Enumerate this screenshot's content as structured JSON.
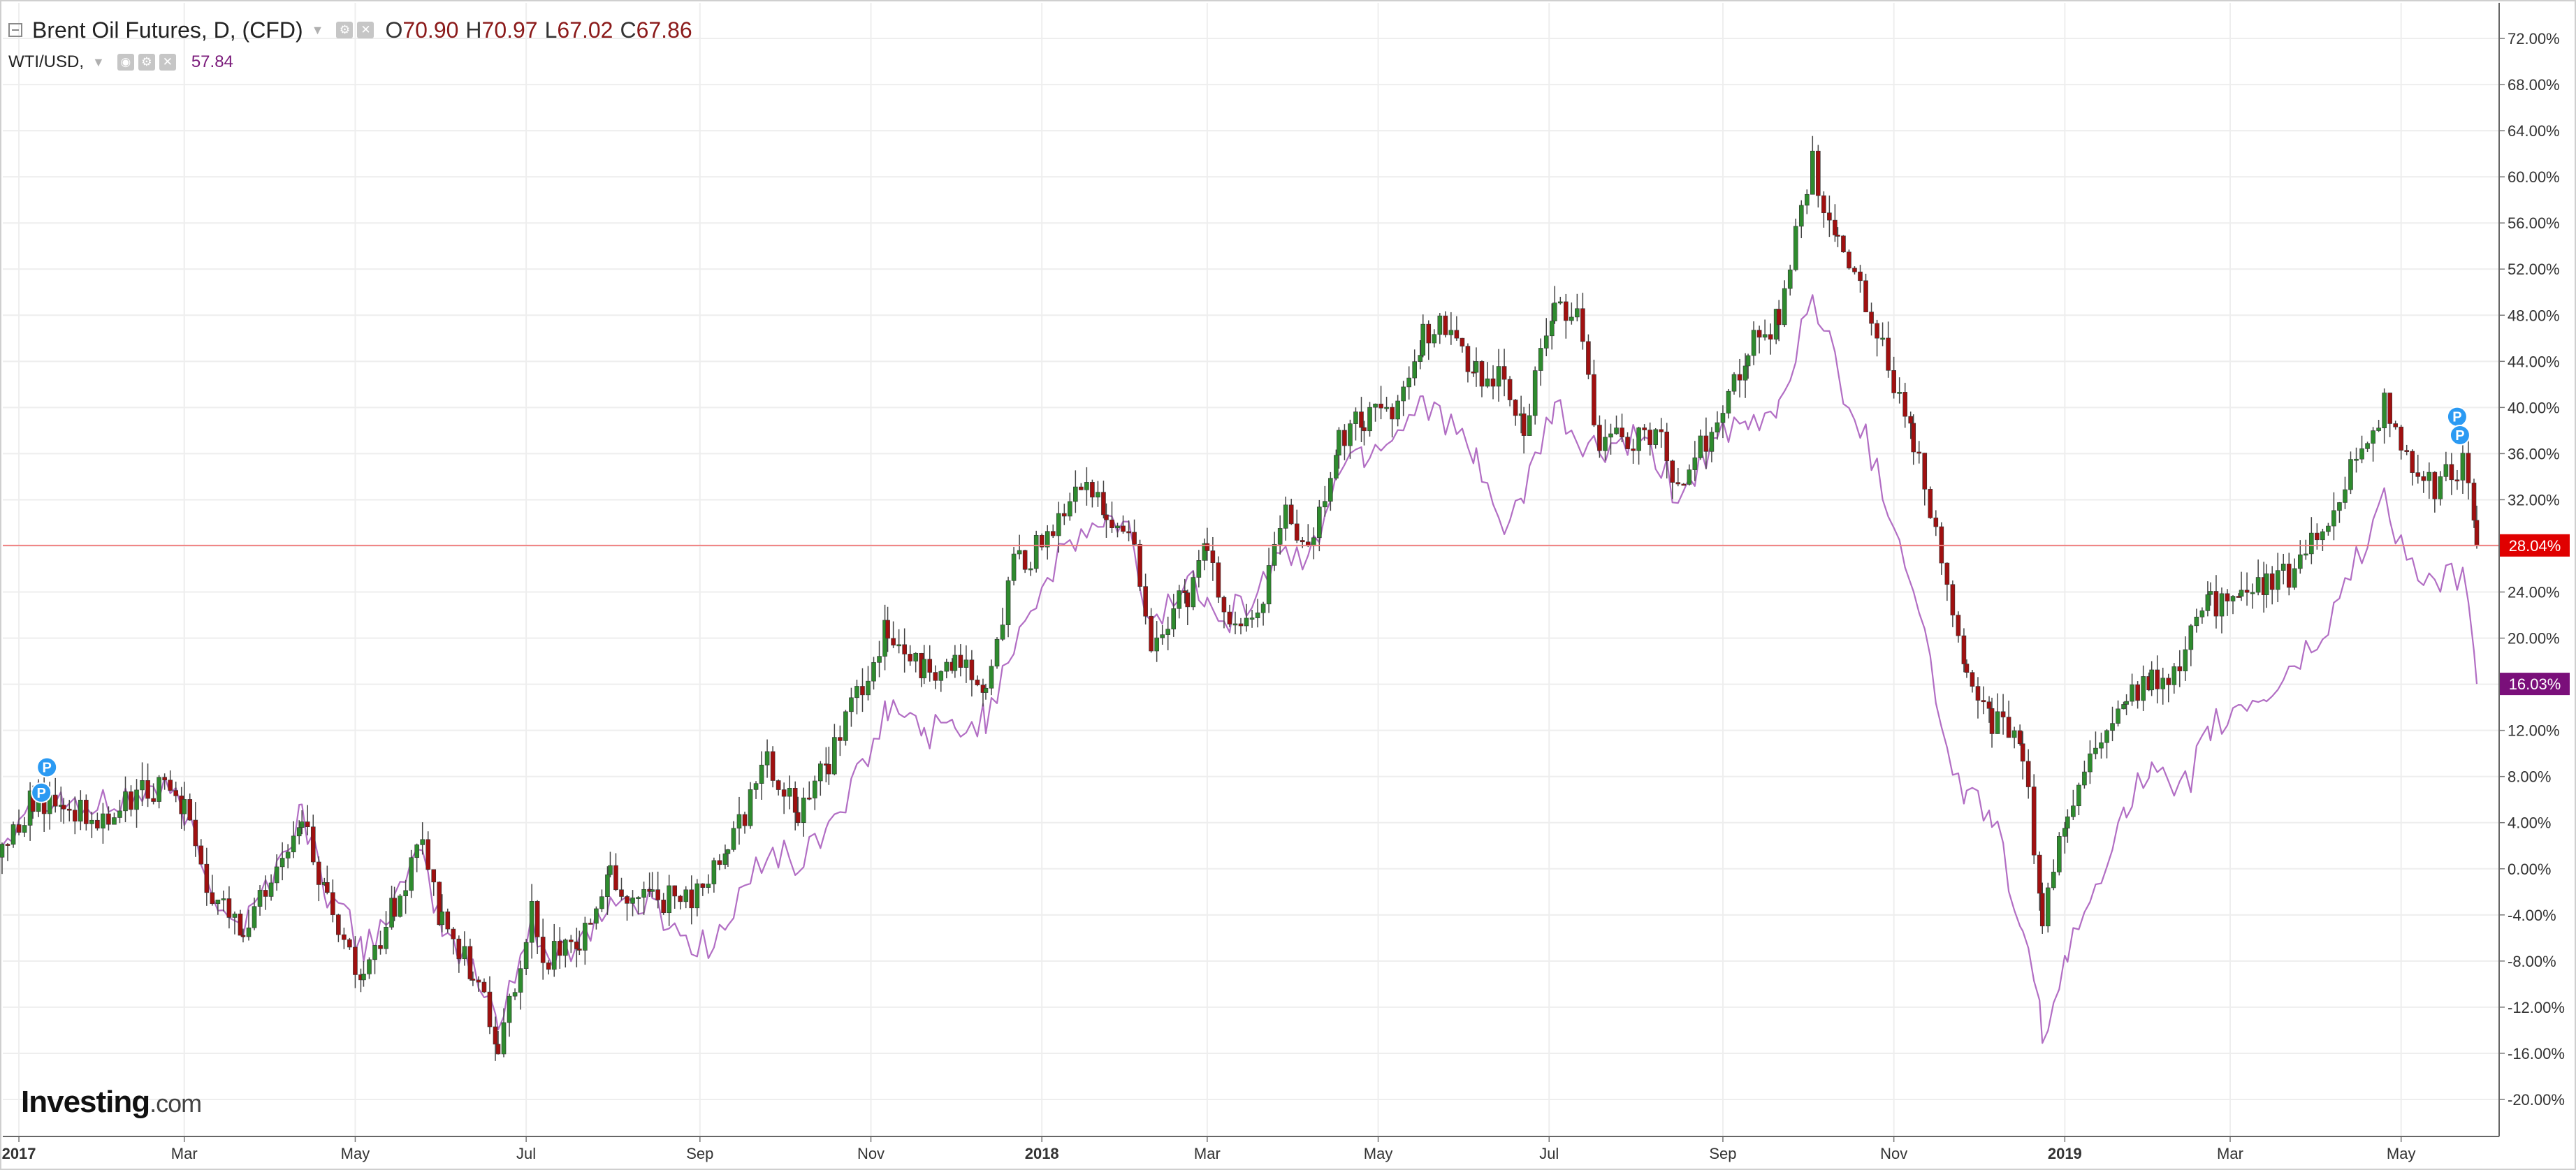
{
  "header": {
    "symbol": "Brent Oil Futures, D, (CFD)",
    "open_key": "O",
    "open": "70.90",
    "high_key": "H",
    "high": "70.97",
    "low_key": "L",
    "low": "67.02",
    "close_key": "C",
    "close": "67.86",
    "compare_symbol": "WTI/USD,",
    "compare_value": "57.84"
  },
  "logo": {
    "brand": "Investing",
    "suffix": ".com"
  },
  "colors": {
    "bull": "#2e8b2e",
    "bear": "#a01010",
    "wick": "#444444",
    "wti_line": "#b26ec4",
    "brent_badge": "#e00000",
    "wti_badge": "#7a0f7a",
    "price_line": "#f08080",
    "pin": "#2b9af3",
    "grid": "#eeeeee"
  },
  "chart_data": {
    "type": "candlestick",
    "ylim": [
      -22,
      74
    ],
    "y_ticks": [
      "72.00%",
      "68.00%",
      "64.00%",
      "60.00%",
      "56.00%",
      "52.00%",
      "48.00%",
      "44.00%",
      "40.00%",
      "36.00%",
      "32.00%",
      "28.00%",
      "24.00%",
      "20.00%",
      "16.00%",
      "12.00%",
      "8.00%",
      "4.00%",
      "0.00%",
      "-4.00%",
      "-8.00%",
      "-12.00%",
      "-16.00%",
      "-20.00%"
    ],
    "x_ticks": [
      "2017",
      "Mar",
      "May",
      "Jul",
      "Sep",
      "Nov",
      "2018",
      "Mar",
      "May",
      "Jul",
      "Sep",
      "Nov",
      "2019",
      "Mar",
      "May"
    ],
    "x_tick_bold": [
      true,
      false,
      false,
      false,
      false,
      false,
      true,
      false,
      false,
      false,
      false,
      false,
      true,
      false,
      false
    ],
    "x_range": [
      "2016-12-26",
      "2019-05-28"
    ],
    "x_tick_dates": [
      "2017-01-01",
      "2017-03-01",
      "2017-05-01",
      "2017-07-01",
      "2017-09-01",
      "2017-11-01",
      "2018-01-01",
      "2018-03-01",
      "2018-05-01",
      "2018-07-01",
      "2018-09-01",
      "2018-11-01",
      "2019-01-01",
      "2019-03-01",
      "2019-05-01"
    ],
    "series": [
      {
        "name": "Brent Oil Futures",
        "style": "candles",
        "last_label": "28.04%",
        "points": [
          [
            "2016-12-26",
            1
          ],
          [
            "2017-01-06",
            6
          ],
          [
            "2017-01-17",
            6
          ],
          [
            "2017-01-27",
            4
          ],
          [
            "2017-02-08",
            6
          ],
          [
            "2017-02-20",
            7
          ],
          [
            "2017-03-01",
            5
          ],
          [
            "2017-03-09",
            -2
          ],
          [
            "2017-03-22",
            -5
          ],
          [
            "2017-04-03",
            -1
          ],
          [
            "2017-04-12",
            5
          ],
          [
            "2017-04-21",
            -3
          ],
          [
            "2017-05-04",
            -10
          ],
          [
            "2017-05-15",
            -3
          ],
          [
            "2017-05-25",
            3
          ],
          [
            "2017-06-01",
            -5
          ],
          [
            "2017-06-12",
            -9
          ],
          [
            "2017-06-21",
            -15
          ],
          [
            "2017-07-03",
            -4
          ],
          [
            "2017-07-07",
            -8
          ],
          [
            "2017-07-20",
            -6
          ],
          [
            "2017-07-31",
            -1
          ],
          [
            "2017-08-15",
            -3
          ],
          [
            "2017-08-31",
            -2
          ],
          [
            "2017-09-11",
            2
          ],
          [
            "2017-09-25",
            9
          ],
          [
            "2017-10-06",
            5
          ],
          [
            "2017-10-17",
            9
          ],
          [
            "2017-10-31",
            17
          ],
          [
            "2017-11-07",
            21
          ],
          [
            "2017-11-20",
            17
          ],
          [
            "2017-12-01",
            18
          ],
          [
            "2017-12-12",
            16
          ],
          [
            "2017-12-22",
            26
          ],
          [
            "2018-01-05",
            29
          ],
          [
            "2018-01-15",
            33
          ],
          [
            "2018-01-24",
            31
          ],
          [
            "2018-02-01",
            30
          ],
          [
            "2018-02-09",
            19
          ],
          [
            "2018-02-22",
            24
          ],
          [
            "2018-03-01",
            28
          ],
          [
            "2018-03-09",
            20
          ],
          [
            "2018-03-19",
            22
          ],
          [
            "2018-03-29",
            31
          ],
          [
            "2018-04-06",
            27
          ],
          [
            "2018-04-17",
            37
          ],
          [
            "2018-04-26",
            39
          ],
          [
            "2018-05-08",
            40
          ],
          [
            "2018-05-17",
            46
          ],
          [
            "2018-05-25",
            47
          ],
          [
            "2018-06-05",
            43
          ],
          [
            "2018-06-13",
            43
          ],
          [
            "2018-06-22",
            38
          ],
          [
            "2018-07-03",
            49
          ],
          [
            "2018-07-11",
            48
          ],
          [
            "2018-07-19",
            37
          ],
          [
            "2018-07-31",
            37
          ],
          [
            "2018-08-10",
            38
          ],
          [
            "2018-08-16",
            33
          ],
          [
            "2018-08-28",
            38
          ],
          [
            "2018-09-10",
            45
          ],
          [
            "2018-09-21",
            48
          ],
          [
            "2018-10-03",
            61
          ],
          [
            "2018-10-12",
            54
          ],
          [
            "2018-10-24",
            48
          ],
          [
            "2018-11-01",
            42
          ],
          [
            "2018-11-08",
            37
          ],
          [
            "2018-11-20",
            25
          ],
          [
            "2018-11-27",
            16
          ],
          [
            "2018-12-06",
            13
          ],
          [
            "2018-12-17",
            10
          ],
          [
            "2018-12-24",
            -4
          ],
          [
            "2019-01-02",
            5
          ],
          [
            "2019-01-14",
            12
          ],
          [
            "2019-01-23",
            15
          ],
          [
            "2019-02-01",
            16
          ],
          [
            "2019-02-11",
            18
          ],
          [
            "2019-02-22",
            23
          ],
          [
            "2019-03-05",
            24
          ],
          [
            "2019-03-14",
            25
          ],
          [
            "2019-03-26",
            26
          ],
          [
            "2019-04-05",
            31
          ],
          [
            "2019-04-15",
            36
          ],
          [
            "2019-04-25",
            40
          ],
          [
            "2019-05-03",
            36
          ],
          [
            "2019-05-13",
            33
          ],
          [
            "2019-05-23",
            35
          ],
          [
            "2019-05-28",
            28.04
          ]
        ]
      },
      {
        "name": "WTI/USD",
        "style": "line",
        "last_label": "16.03%",
        "points": [
          [
            "2016-12-26",
            2
          ],
          [
            "2017-01-06",
            7
          ],
          [
            "2017-01-17",
            6
          ],
          [
            "2017-01-27",
            5
          ],
          [
            "2017-02-08",
            6
          ],
          [
            "2017-02-20",
            7
          ],
          [
            "2017-03-01",
            5
          ],
          [
            "2017-03-09",
            -1
          ],
          [
            "2017-03-22",
            -5
          ],
          [
            "2017-04-03",
            0
          ],
          [
            "2017-04-12",
            5
          ],
          [
            "2017-04-21",
            -2
          ],
          [
            "2017-05-04",
            -7
          ],
          [
            "2017-05-15",
            -3
          ],
          [
            "2017-05-25",
            1
          ],
          [
            "2017-06-01",
            -5
          ],
          [
            "2017-06-12",
            -9
          ],
          [
            "2017-06-21",
            -13
          ],
          [
            "2017-07-03",
            -5
          ],
          [
            "2017-07-07",
            -8
          ],
          [
            "2017-07-20",
            -6
          ],
          [
            "2017-07-31",
            -3
          ],
          [
            "2017-08-15",
            -3
          ],
          [
            "2017-08-31",
            -7
          ],
          [
            "2017-09-11",
            -5
          ],
          [
            "2017-09-25",
            2
          ],
          [
            "2017-10-06",
            0
          ],
          [
            "2017-10-17",
            4
          ],
          [
            "2017-10-31",
            9
          ],
          [
            "2017-11-07",
            14
          ],
          [
            "2017-11-20",
            12
          ],
          [
            "2017-12-01",
            12
          ],
          [
            "2017-12-12",
            13
          ],
          [
            "2017-12-22",
            20
          ],
          [
            "2018-01-05",
            26
          ],
          [
            "2018-01-15",
            29
          ],
          [
            "2018-01-24",
            30
          ],
          [
            "2018-02-01",
            29
          ],
          [
            "2018-02-09",
            21
          ],
          [
            "2018-02-22",
            25
          ],
          [
            "2018-03-01",
            24
          ],
          [
            "2018-03-09",
            22
          ],
          [
            "2018-03-19",
            24
          ],
          [
            "2018-03-29",
            28
          ],
          [
            "2018-04-06",
            26
          ],
          [
            "2018-04-17",
            35
          ],
          [
            "2018-04-26",
            36
          ],
          [
            "2018-05-08",
            38
          ],
          [
            "2018-05-17",
            41
          ],
          [
            "2018-05-25",
            39
          ],
          [
            "2018-06-05",
            35
          ],
          [
            "2018-06-13",
            30
          ],
          [
            "2018-06-22",
            32
          ],
          [
            "2018-07-03",
            40
          ],
          [
            "2018-07-11",
            37
          ],
          [
            "2018-07-19",
            36
          ],
          [
            "2018-07-31",
            37
          ],
          [
            "2018-08-10",
            35
          ],
          [
            "2018-08-16",
            32
          ],
          [
            "2018-08-28",
            37
          ],
          [
            "2018-09-10",
            38
          ],
          [
            "2018-09-21",
            40
          ],
          [
            "2018-10-03",
            50
          ],
          [
            "2018-10-12",
            43
          ],
          [
            "2018-10-24",
            36
          ],
          [
            "2018-11-01",
            30
          ],
          [
            "2018-11-08",
            25
          ],
          [
            "2018-11-20",
            10
          ],
          [
            "2018-11-27",
            6
          ],
          [
            "2018-12-06",
            5
          ],
          [
            "2018-12-17",
            -6
          ],
          [
            "2018-12-24",
            -14
          ],
          [
            "2019-01-02",
            -8
          ],
          [
            "2019-01-14",
            0
          ],
          [
            "2019-01-23",
            6
          ],
          [
            "2019-02-01",
            8
          ],
          [
            "2019-02-11",
            6
          ],
          [
            "2019-02-22",
            12
          ],
          [
            "2019-03-05",
            14
          ],
          [
            "2019-03-14",
            15
          ],
          [
            "2019-03-26",
            18
          ],
          [
            "2019-04-05",
            21
          ],
          [
            "2019-04-15",
            27
          ],
          [
            "2019-04-25",
            32
          ],
          [
            "2019-05-03",
            27
          ],
          [
            "2019-05-13",
            24
          ],
          [
            "2019-05-23",
            26
          ],
          [
            "2019-05-28",
            16.03
          ]
        ]
      }
    ],
    "reference_line": 28.04,
    "pins": [
      {
        "label": "P",
        "date": "2017-01-11",
        "value": 8.8
      },
      {
        "label": "P",
        "date": "2017-01-09",
        "value": 6.6
      },
      {
        "label": "P",
        "date": "2019-05-21",
        "value": 39.2
      },
      {
        "label": "P",
        "date": "2019-05-22",
        "value": 37.6
      }
    ]
  }
}
